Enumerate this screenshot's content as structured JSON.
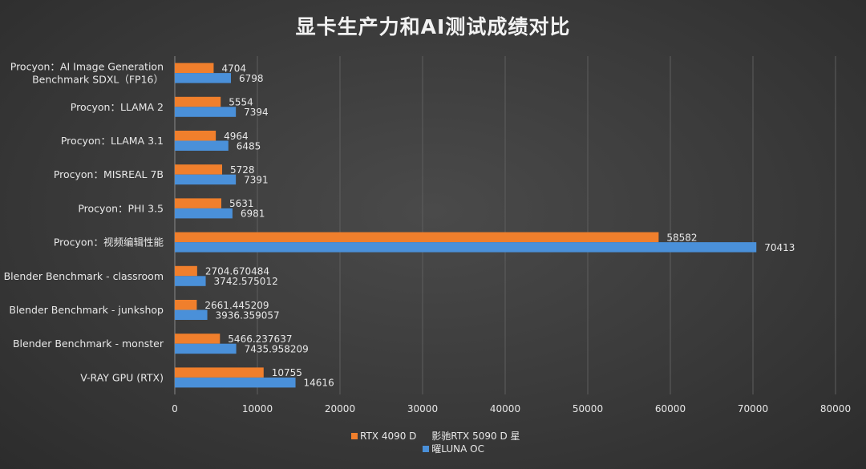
{
  "chart_data": {
    "type": "bar",
    "orientation": "horizontal",
    "title": "显卡生产力和AI测试成绩对比",
    "categories": [
      "Procyon：AI Image Generation Benchmark SDXL（FP16）",
      "Procyon：LLAMA 2",
      "Procyon：LLAMA 3.1",
      "Procyon：MISREAL 7B",
      "Procyon：PHI 3.5",
      "Procyon：视频编辑性能",
      "Blender Benchmark - classroom",
      "Blender Benchmark - junkshop",
      "Blender Benchmark - monster",
      "V-RAY GPU (RTX)"
    ],
    "category_lines": [
      [
        "Procyon：AI Image Generation",
        "Benchmark SDXL（FP16）"
      ],
      [
        "Procyon：LLAMA 2"
      ],
      [
        "Procyon：LLAMA 3.1"
      ],
      [
        "Procyon：MISREAL 7B"
      ],
      [
        "Procyon：PHI 3.5"
      ],
      [
        "Procyon：视频编辑性能"
      ],
      [
        "Blender Benchmark - classroom"
      ],
      [
        "Blender Benchmark - junkshop"
      ],
      [
        "Blender Benchmark - monster"
      ],
      [
        "V-RAY GPU (RTX)"
      ]
    ],
    "series": [
      {
        "name": "RTX 4090 D",
        "color": "#f07f2c",
        "values": [
          4704,
          5554,
          4964,
          5728,
          5631,
          58582,
          2704.670484,
          2661.445209,
          5466.237637,
          10755
        ],
        "labels": [
          "4704",
          "5554",
          "4964",
          "5728",
          "5631",
          "58582",
          "2704.670484",
          "2661.445209",
          "5466.237637",
          "10755"
        ]
      },
      {
        "name": "影驰RTX 5090 D 星曜LUNA OC",
        "color": "#4a90d9",
        "values": [
          6798,
          7394,
          6485,
          7391,
          6981,
          70413,
          3742.575012,
          3936.359057,
          7435.958209,
          14616
        ],
        "labels": [
          "6798",
          "7394",
          "6485",
          "7391",
          "6981",
          "70413",
          "3742.575012",
          "3936.359057",
          "7435.958209",
          "14616"
        ]
      }
    ],
    "xlim": [
      0,
      80000
    ],
    "xticks": [
      0,
      10000,
      20000,
      30000,
      40000,
      50000,
      60000,
      70000,
      80000
    ],
    "grid": true,
    "legend_position": "bottom"
  }
}
